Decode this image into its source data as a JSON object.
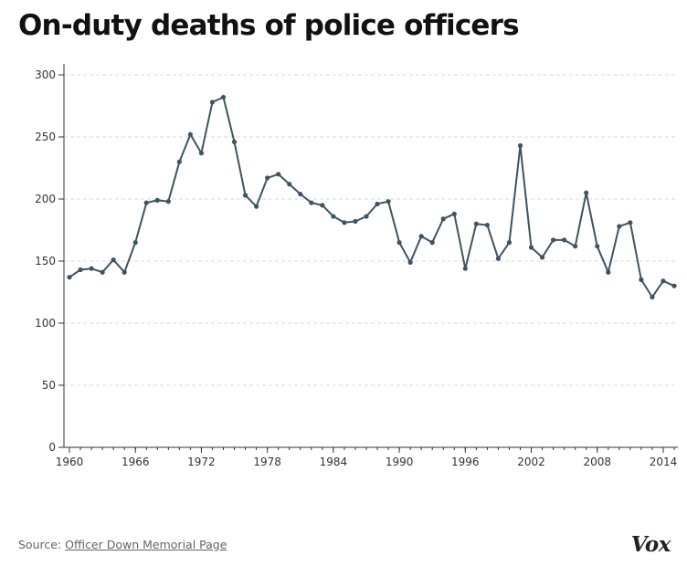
{
  "colors": {
    "line": "#3d5560",
    "grid": "#d9d9d9",
    "axis": "#333333"
  },
  "chart_data": {
    "type": "line",
    "title": "On-duty deaths of police officers",
    "xlabel": "",
    "ylabel": "",
    "xlim": [
      1960,
      2015
    ],
    "ylim": [
      0,
      300
    ],
    "yticks": [
      0,
      50,
      100,
      150,
      200,
      250,
      300
    ],
    "xticks": [
      1960,
      1966,
      1972,
      1978,
      1984,
      1990,
      1996,
      2002,
      2008,
      2014
    ],
    "grid": true,
    "legend": "none",
    "series": [
      {
        "name": "On-duty deaths",
        "x": [
          1960,
          1961,
          1962,
          1963,
          1964,
          1965,
          1966,
          1967,
          1968,
          1969,
          1970,
          1971,
          1972,
          1973,
          1974,
          1975,
          1976,
          1977,
          1978,
          1979,
          1980,
          1981,
          1982,
          1983,
          1984,
          1985,
          1986,
          1987,
          1988,
          1989,
          1990,
          1991,
          1992,
          1993,
          1994,
          1995,
          1996,
          1997,
          1998,
          1999,
          2000,
          2001,
          2002,
          2003,
          2004,
          2005,
          2006,
          2007,
          2008,
          2009,
          2010,
          2011,
          2012,
          2013,
          2014,
          2015
        ],
        "values": [
          137,
          143,
          144,
          141,
          151,
          141,
          165,
          197,
          199,
          198,
          230,
          252,
          237,
          278,
          282,
          246,
          203,
          194,
          217,
          220,
          212,
          204,
          197,
          195,
          186,
          181,
          182,
          186,
          196,
          198,
          165,
          149,
          170,
          165,
          184,
          188,
          144,
          180,
          179,
          152,
          165,
          243,
          161,
          153,
          167,
          167,
          162,
          205,
          162,
          141,
          178,
          181,
          135,
          121,
          134,
          130
        ]
      }
    ]
  },
  "source": {
    "label": "Source:",
    "link_text": "Officer Down Memorial Page"
  },
  "brand": {
    "logo_text": "Vox"
  }
}
